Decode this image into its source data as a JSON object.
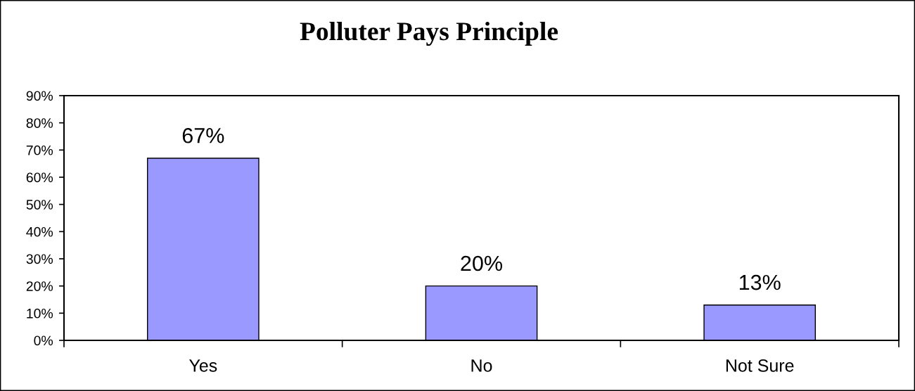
{
  "chart_data": {
    "type": "bar",
    "title": "Polluter Pays Principle",
    "categories": [
      "Yes",
      "No",
      "Not Sure"
    ],
    "values": [
      67,
      20,
      13
    ],
    "value_labels": [
      "67%",
      "20%",
      "13%"
    ],
    "color": "#9999ff",
    "ylim": [
      0,
      90
    ],
    "yticks": [
      {
        "value": 0,
        "label": "0%"
      },
      {
        "value": 10,
        "label": "10%"
      },
      {
        "value": 20,
        "label": "20%"
      },
      {
        "value": 30,
        "label": "30%"
      },
      {
        "value": 40,
        "label": "40%"
      },
      {
        "value": 50,
        "label": "50%"
      },
      {
        "value": 60,
        "label": "60%"
      },
      {
        "value": 70,
        "label": "70%"
      },
      {
        "value": 80,
        "label": "80%"
      },
      {
        "value": 90,
        "label": "90%"
      }
    ]
  }
}
